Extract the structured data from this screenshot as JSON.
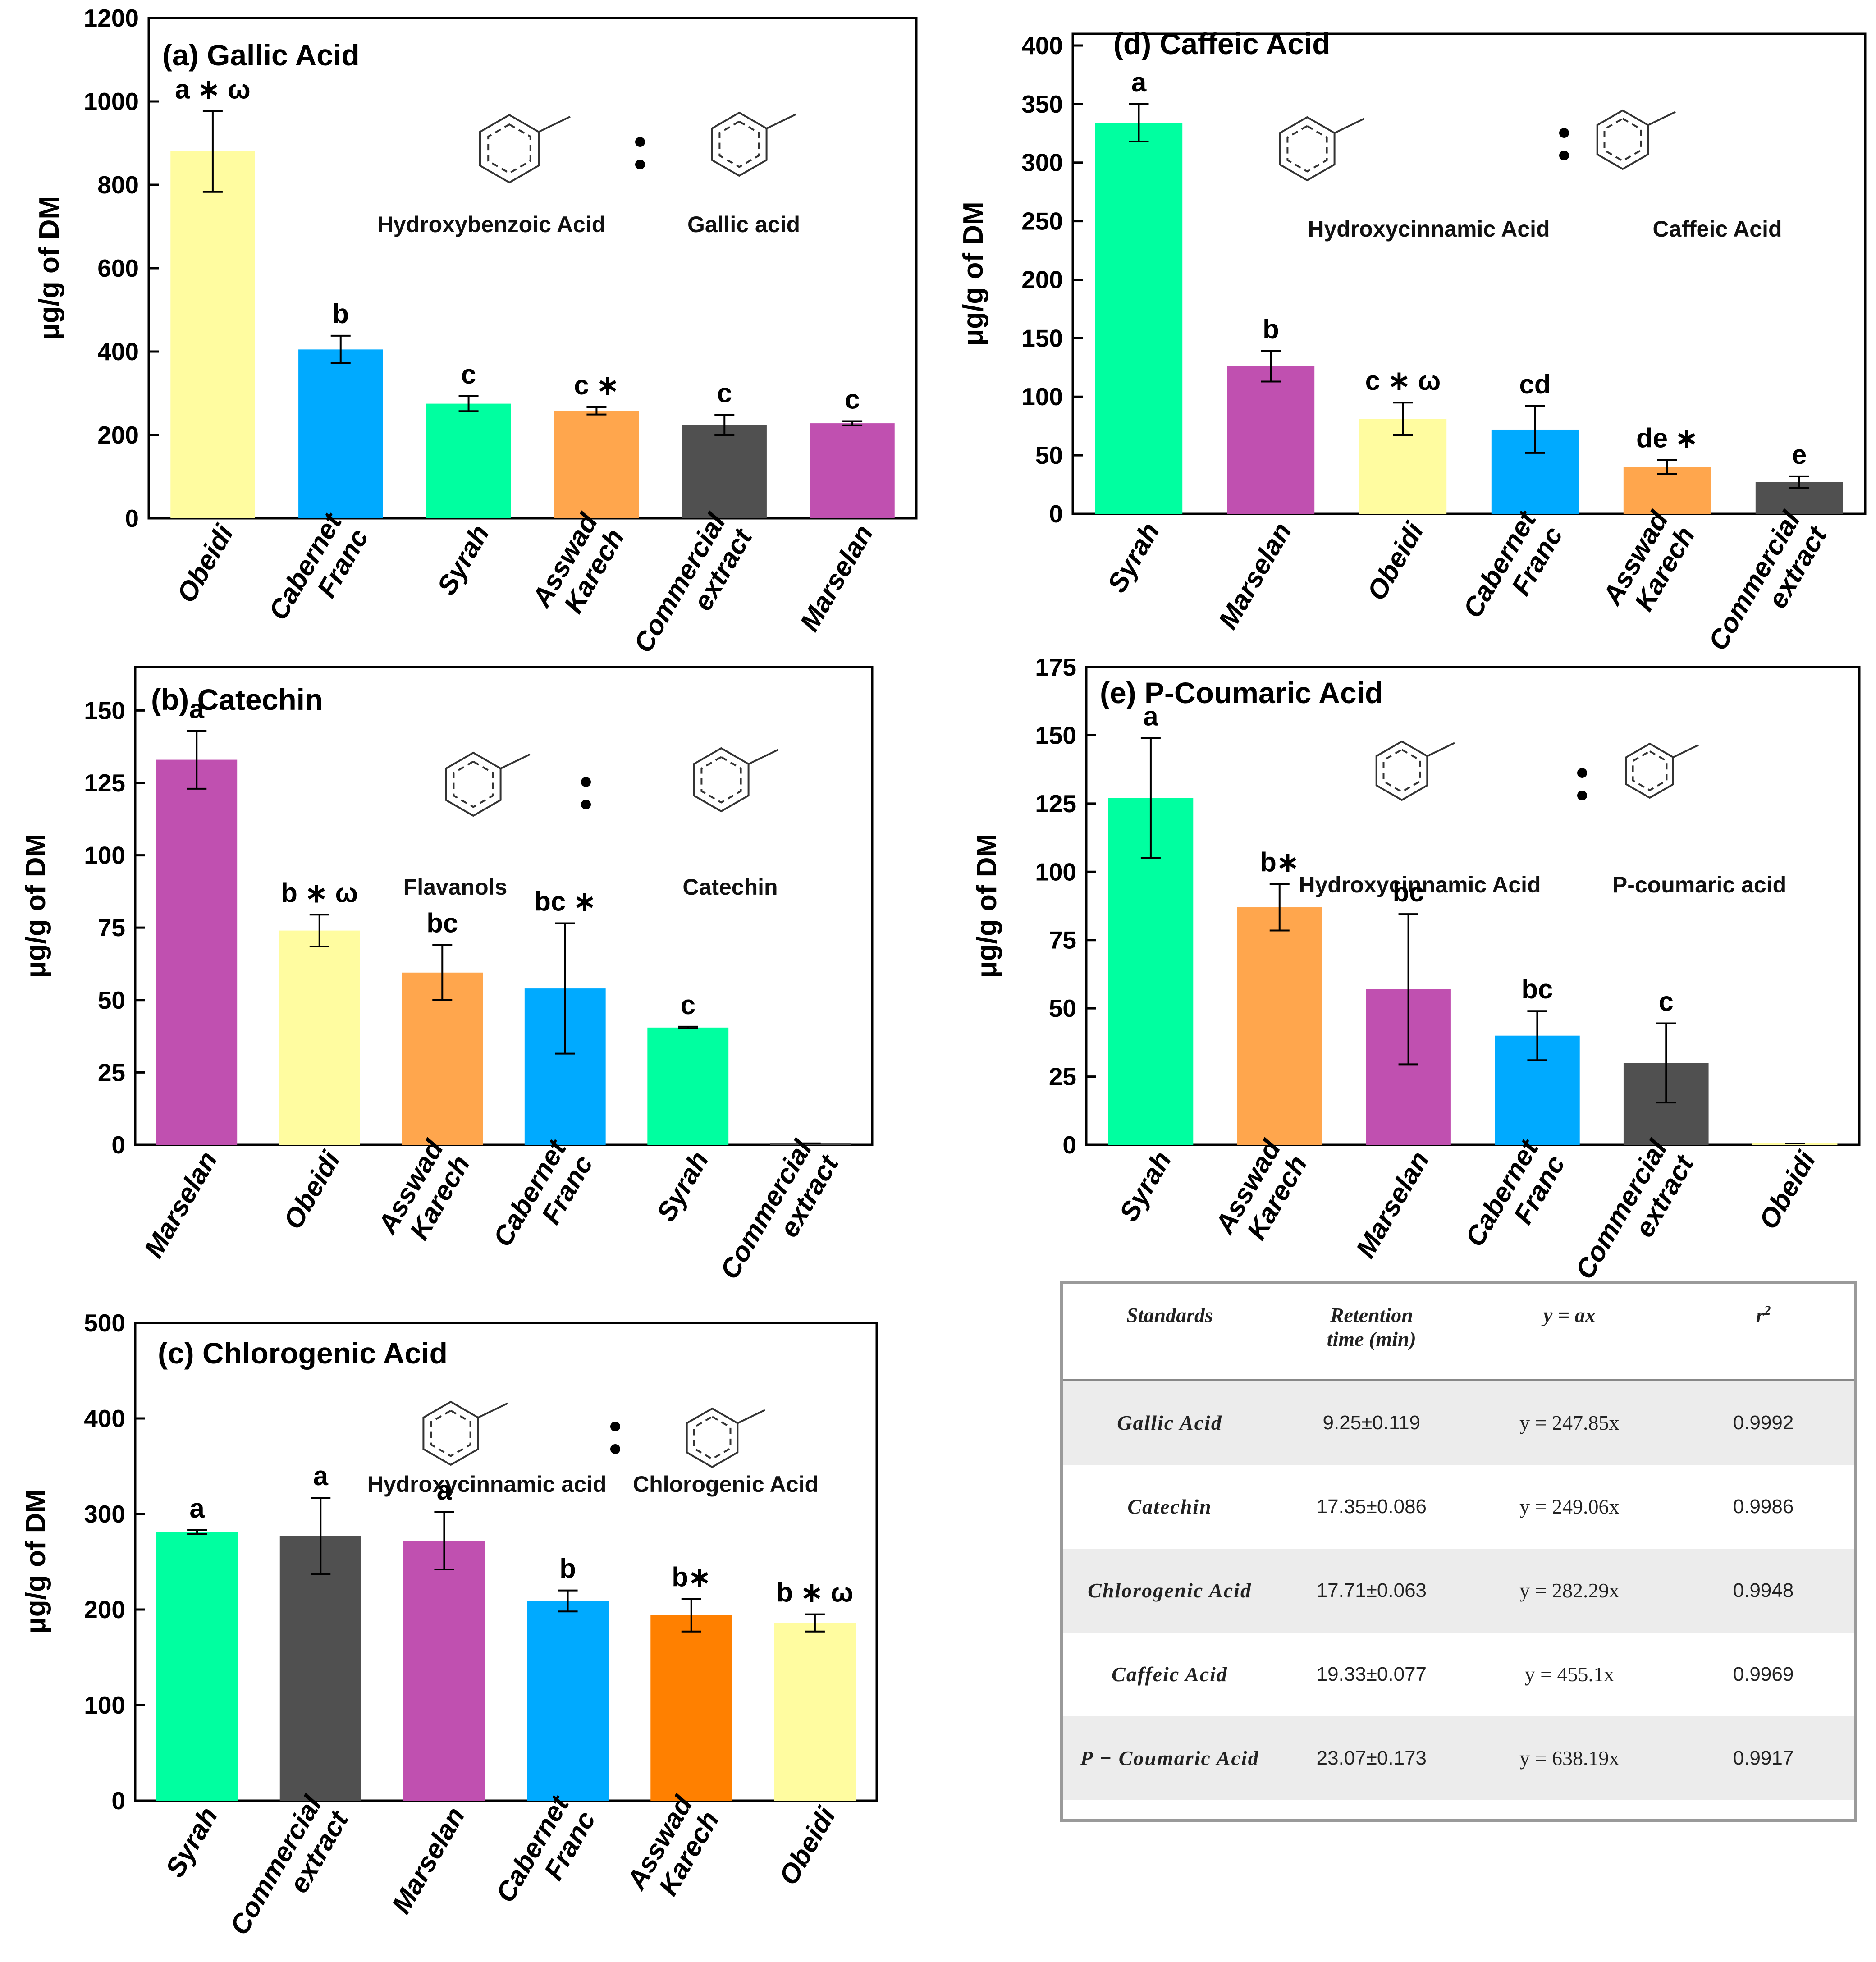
{
  "y_axis_label": "μg/g of DM",
  "colors": {
    "Obeidi": "#FFFCA0",
    "Cabernet Franc": "#00AAFF",
    "Syrah": "#00FFA0",
    "Asswad Karech": "#FFA64D",
    "Asswad Karech (c)": "#FF8000",
    "Commercial extract": "#505050",
    "Marselan": "#C050B0"
  },
  "structures": {
    "gallic": {
      "left": "Hydroxybenzoic Acid",
      "right": "Gallic acid"
    },
    "catechin": {
      "left": "Flavanols",
      "right": "Catechin"
    },
    "chlorogenic": {
      "left": "Hydroxycinnamic acid",
      "right": "Chlorogenic Acid"
    },
    "caffeic": {
      "left": "Hydroxycinnamic Acid",
      "right": "Caffeic Acid"
    },
    "coumaric": {
      "left": "Hydroxycinnamic Acid",
      "right": "P-coumaric acid"
    }
  },
  "chart_data": [
    {
      "id": "a",
      "type": "bar",
      "title": "(a) Gallic Acid",
      "ylabel": "μg/g of DM",
      "ylim": [
        0,
        1200
      ],
      "yticks": [
        0,
        200,
        400,
        600,
        800,
        1000,
        1200
      ],
      "categories": [
        "Obeidi",
        "Cabernet Franc",
        "Syrah",
        "Asswad Karech",
        "Commercial extract",
        "Marselan"
      ],
      "values": [
        880,
        405,
        275,
        258,
        224,
        228
      ],
      "errors": [
        97,
        33,
        18,
        9,
        24,
        5
      ],
      "labels": [
        "a ∗ ω",
        "b",
        "c",
        "c ∗",
        "c",
        "c"
      ]
    },
    {
      "id": "b",
      "type": "bar",
      "title": "(b) Catechin",
      "ylabel": "μg/g of DM",
      "ylim": [
        0,
        165
      ],
      "yticks": [
        0,
        25,
        50,
        75,
        100,
        125,
        150
      ],
      "categories": [
        "Marselan",
        "Obeidi",
        "Asswad Karech",
        "Cabernet Franc",
        "Syrah",
        "Commercial extract"
      ],
      "values": [
        133,
        74,
        59.5,
        54,
        40.5,
        0.5
      ],
      "errors": [
        10,
        5.5,
        9.5,
        22.5,
        0.3,
        0
      ],
      "labels": [
        "a",
        "b ∗ ω",
        "bc",
        "bc ∗",
        "c",
        ""
      ]
    },
    {
      "id": "c",
      "type": "bar",
      "title": "(c) Chlorogenic Acid",
      "ylabel": "μg/g of DM",
      "ylim": [
        0,
        500
      ],
      "yticks": [
        0,
        100,
        200,
        300,
        400,
        500
      ],
      "categories": [
        "Syrah",
        "Commercial extract",
        "Marselan",
        "Cabernet Franc",
        "Asswad Karech",
        "Obeidi"
      ],
      "values": [
        281,
        277,
        272,
        209,
        194,
        186
      ],
      "errors": [
        2,
        40,
        30,
        11,
        17,
        9
      ],
      "labels": [
        "a",
        "a",
        "a",
        "b",
        "b∗",
        "b ∗ ω"
      ]
    },
    {
      "id": "d",
      "type": "bar",
      "title": "(d) Caffeic Acid",
      "ylabel": "μg/g of DM",
      "ylim": [
        0,
        410
      ],
      "yticks": [
        0,
        50,
        100,
        150,
        200,
        250,
        300,
        350,
        400
      ],
      "categories": [
        "Syrah",
        "Marselan",
        "Obeidi",
        "Cabernet Franc",
        "Asswad Karech",
        "Commercial extract"
      ],
      "values": [
        334,
        126,
        81,
        72,
        40,
        27
      ],
      "errors": [
        16,
        13,
        14,
        20,
        6,
        5
      ],
      "labels": [
        "a",
        "b",
        "c ∗ ω",
        "cd",
        "de ∗",
        "e"
      ]
    },
    {
      "id": "e",
      "type": "bar",
      "title": "(e) P-Coumaric Acid",
      "ylabel": "μg/g of DM",
      "ylim": [
        0,
        175
      ],
      "yticks": [
        0,
        25,
        50,
        75,
        100,
        125,
        150,
        175
      ],
      "categories": [
        "Syrah",
        "Asswad Karech",
        "Marselan",
        "Cabernet Franc",
        "Commercial extract",
        "Obeidi"
      ],
      "values": [
        127,
        87,
        57,
        40,
        30,
        0.5
      ],
      "errors": [
        22,
        8.5,
        27.5,
        9,
        14.5,
        0
      ],
      "labels": [
        "a",
        "b∗",
        "bc",
        "bc",
        "c",
        ""
      ]
    }
  ],
  "table": {
    "headers": [
      "Standards",
      "Retention time (min)",
      "y = ax",
      "r"
    ],
    "r_sup": "2",
    "rows": [
      {
        "standard": "Gallic Acid",
        "rt": "9.25±0.119",
        "eq": "y = 247.85x",
        "r2": "0.9992"
      },
      {
        "standard": "Catechin",
        "rt": "17.35±0.086",
        "eq": "y = 249.06x",
        "r2": "0.9986"
      },
      {
        "standard": "Chlorogenic Acid",
        "rt": "17.71±0.063",
        "eq": "y = 282.29x",
        "r2": "0.9948"
      },
      {
        "standard": "Caffeic Acid",
        "rt": "19.33±0.077",
        "eq": "y = 455.1x",
        "r2": "0.9969"
      },
      {
        "standard": "P − Coumaric Acid",
        "rt": "23.07±0.173",
        "eq": "y = 638.19x",
        "r2": "0.9917"
      }
    ]
  }
}
